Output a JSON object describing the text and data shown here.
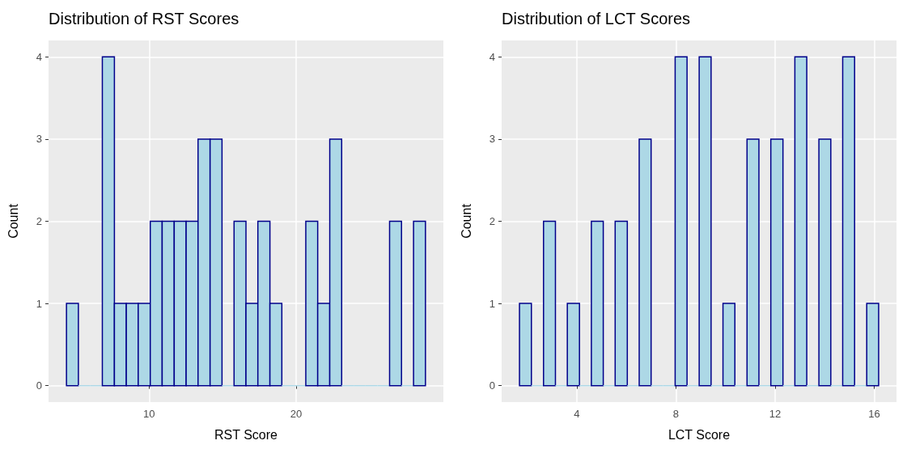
{
  "chart_data": [
    {
      "type": "histogram",
      "title": "Distribution of RST Scores",
      "xlabel": "RST Score",
      "ylabel": "Count",
      "bins": [
        4.38,
        5.19,
        6.01,
        6.82,
        7.64,
        8.45,
        9.26,
        10.08,
        10.89,
        11.71,
        12.52,
        13.33,
        14.15,
        14.96,
        15.78,
        16.59,
        17.4,
        18.22,
        19.03,
        19.85,
        20.66,
        21.47,
        22.29,
        23.1,
        23.92,
        24.73,
        25.54,
        26.36,
        27.17,
        27.99,
        28.8
      ],
      "values": [
        1,
        0,
        0,
        4,
        1,
        1,
        1,
        2,
        2,
        2,
        2,
        3,
        3,
        0,
        2,
        1,
        2,
        1,
        0,
        0,
        2,
        1,
        3,
        0,
        0,
        0,
        0,
        2,
        0,
        2
      ],
      "color": "#add8e6",
      "grid": true,
      "xlim": [
        3.16,
        30.02
      ],
      "xticks": [
        10,
        20
      ],
      "ylim": [
        -0.2,
        4.2
      ],
      "yticks": [
        0,
        1,
        2,
        3,
        4
      ]
    },
    {
      "type": "histogram",
      "title": "Distribution of LCT Scores",
      "xlabel": "LCT Score",
      "ylabel": "Count",
      "bins": [
        1.69,
        2.17,
        2.66,
        3.14,
        3.62,
        4.11,
        4.59,
        5.07,
        5.55,
        6.04,
        6.52,
        7.0,
        7.49,
        7.97,
        8.45,
        8.94,
        9.42,
        9.9,
        10.38,
        10.87,
        11.35,
        11.83,
        12.32,
        12.8,
        13.28,
        13.77,
        14.25,
        14.73,
        15.21,
        15.7,
        16.18
      ],
      "values": [
        1,
        0,
        2,
        0,
        1,
        0,
        2,
        0,
        2,
        0,
        3,
        0,
        0,
        4,
        0,
        4,
        0,
        1,
        0,
        3,
        0,
        3,
        0,
        4,
        0,
        3,
        0,
        4,
        0,
        1
      ],
      "color": "#add8e6",
      "grid": true,
      "xlim": [
        0.97,
        16.9
      ],
      "xticks": [
        4,
        8,
        12,
        16
      ],
      "ylim": [
        -0.2,
        4.2
      ],
      "yticks": [
        0,
        1,
        2,
        3,
        4
      ]
    }
  ]
}
